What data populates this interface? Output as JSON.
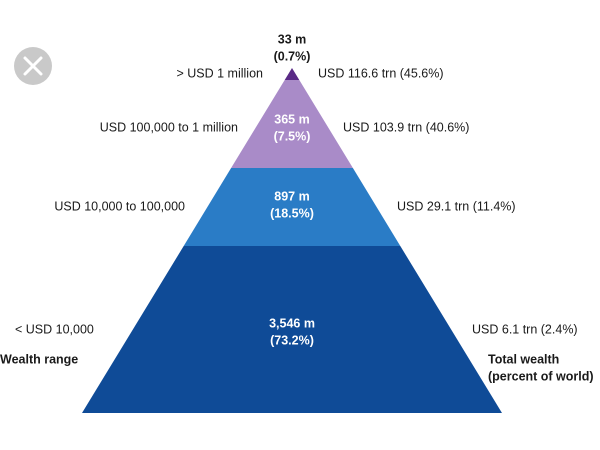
{
  "range_heading": "Wealth range",
  "wealth_heading": [
    "Total wealth",
    "(percent of world)"
  ],
  "tiers": [
    {
      "range": "> USD 1 million",
      "population": "33 m",
      "share": "(0.7%)",
      "wealth": "USD 116.6 trn (45.6%)"
    },
    {
      "range": "USD 100,000  to 1 million",
      "population": "365 m",
      "share": "(7.5%)",
      "wealth": "USD 103.9 trn (40.6%)"
    },
    {
      "range": "USD 10,000  to 100,000",
      "population": "897 m",
      "share": "(18.5%)",
      "wealth": "USD 29.1 trn (11.4%)"
    },
    {
      "range": "< USD 10,000",
      "population": "3,546 m",
      "share": "(73.2%)",
      "wealth": "USD 6.1 trn (2.4%)"
    }
  ]
}
